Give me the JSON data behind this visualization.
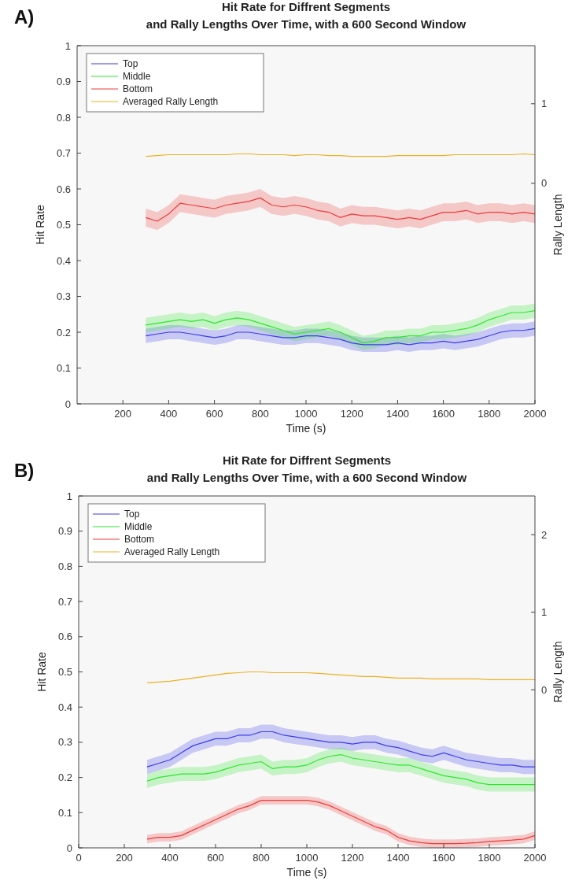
{
  "chart_data": [
    {
      "type": "line",
      "title": "Hit Rate for Diffrent Segments\nand Rally Lengths Over Time, with a 600 Second Window",
      "annotations": [
        "A)"
      ],
      "xlabel": "Time (s)",
      "ylabel": "Hit Rate",
      "y2label": "Rally Length",
      "x": [
        300,
        350,
        400,
        450,
        500,
        550,
        600,
        650,
        700,
        750,
        800,
        850,
        900,
        950,
        1000,
        1050,
        1100,
        1150,
        1200,
        1250,
        1300,
        1350,
        1400,
        1450,
        1500,
        1550,
        1600,
        1650,
        1700,
        1750,
        1800,
        1850,
        1900,
        1950,
        2000
      ],
      "xlim": [
        0,
        2000
      ],
      "xticks": [
        200,
        400,
        600,
        800,
        1000,
        1200,
        1400,
        1600,
        1800,
        2000
      ],
      "ylim": [
        0,
        1
      ],
      "yticks": [
        0,
        0.1,
        0.2,
        0.3,
        0.4,
        0.5,
        0.6,
        0.7,
        0.8,
        0.9,
        1
      ],
      "y2lim": [
        -2.77,
        1.73
      ],
      "y2ticks": [
        0,
        1
      ],
      "legend": "top left",
      "line_style": "solid",
      "series": [
        {
          "name": "Top",
          "color": "#3b3bf0",
          "values": [
            0.19,
            0.195,
            0.2,
            0.2,
            0.195,
            0.19,
            0.185,
            0.19,
            0.2,
            0.2,
            0.195,
            0.19,
            0.185,
            0.185,
            0.19,
            0.19,
            0.185,
            0.18,
            0.17,
            0.165,
            0.165,
            0.165,
            0.17,
            0.165,
            0.17,
            0.17,
            0.175,
            0.17,
            0.175,
            0.18,
            0.19,
            0.2,
            0.205,
            0.205,
            0.21
          ],
          "lower": [
            0.17,
            0.175,
            0.18,
            0.18,
            0.175,
            0.17,
            0.165,
            0.17,
            0.18,
            0.18,
            0.175,
            0.17,
            0.165,
            0.165,
            0.17,
            0.17,
            0.165,
            0.16,
            0.15,
            0.145,
            0.145,
            0.145,
            0.15,
            0.145,
            0.15,
            0.15,
            0.155,
            0.15,
            0.155,
            0.16,
            0.17,
            0.18,
            0.185,
            0.185,
            0.19
          ],
          "upper": [
            0.21,
            0.215,
            0.22,
            0.22,
            0.215,
            0.21,
            0.205,
            0.21,
            0.22,
            0.22,
            0.215,
            0.21,
            0.205,
            0.205,
            0.21,
            0.21,
            0.205,
            0.2,
            0.19,
            0.185,
            0.185,
            0.185,
            0.19,
            0.185,
            0.19,
            0.19,
            0.195,
            0.19,
            0.195,
            0.2,
            0.21,
            0.22,
            0.225,
            0.225,
            0.23
          ]
        },
        {
          "name": "Middle",
          "color": "#2ee62e",
          "values": [
            0.22,
            0.225,
            0.23,
            0.235,
            0.23,
            0.235,
            0.225,
            0.235,
            0.24,
            0.235,
            0.225,
            0.215,
            0.205,
            0.195,
            0.2,
            0.205,
            0.21,
            0.2,
            0.185,
            0.17,
            0.175,
            0.185,
            0.185,
            0.19,
            0.19,
            0.2,
            0.2,
            0.205,
            0.21,
            0.22,
            0.235,
            0.245,
            0.255,
            0.255,
            0.26
          ],
          "lower": [
            0.2,
            0.205,
            0.21,
            0.215,
            0.21,
            0.215,
            0.205,
            0.215,
            0.22,
            0.215,
            0.205,
            0.195,
            0.185,
            0.175,
            0.18,
            0.185,
            0.19,
            0.18,
            0.165,
            0.15,
            0.155,
            0.165,
            0.165,
            0.17,
            0.17,
            0.18,
            0.18,
            0.185,
            0.19,
            0.2,
            0.215,
            0.225,
            0.235,
            0.235,
            0.24
          ],
          "upper": [
            0.24,
            0.245,
            0.25,
            0.255,
            0.25,
            0.255,
            0.245,
            0.255,
            0.26,
            0.255,
            0.245,
            0.235,
            0.225,
            0.215,
            0.22,
            0.225,
            0.23,
            0.22,
            0.205,
            0.19,
            0.195,
            0.205,
            0.205,
            0.21,
            0.21,
            0.22,
            0.22,
            0.225,
            0.23,
            0.24,
            0.255,
            0.265,
            0.275,
            0.275,
            0.28
          ]
        },
        {
          "name": "Bottom",
          "color": "#f03a3a",
          "values": [
            0.52,
            0.51,
            0.53,
            0.56,
            0.555,
            0.55,
            0.545,
            0.555,
            0.56,
            0.565,
            0.575,
            0.555,
            0.55,
            0.555,
            0.55,
            0.54,
            0.535,
            0.52,
            0.53,
            0.525,
            0.525,
            0.52,
            0.515,
            0.52,
            0.515,
            0.525,
            0.535,
            0.535,
            0.54,
            0.53,
            0.535,
            0.535,
            0.53,
            0.535,
            0.53
          ],
          "lower": [
            0.495,
            0.485,
            0.505,
            0.535,
            0.53,
            0.525,
            0.52,
            0.53,
            0.535,
            0.54,
            0.55,
            0.53,
            0.525,
            0.53,
            0.525,
            0.515,
            0.51,
            0.495,
            0.505,
            0.5,
            0.5,
            0.495,
            0.49,
            0.495,
            0.49,
            0.5,
            0.51,
            0.51,
            0.515,
            0.505,
            0.51,
            0.51,
            0.505,
            0.51,
            0.505
          ],
          "upper": [
            0.545,
            0.535,
            0.555,
            0.585,
            0.58,
            0.575,
            0.57,
            0.58,
            0.585,
            0.59,
            0.6,
            0.58,
            0.575,
            0.58,
            0.575,
            0.565,
            0.56,
            0.545,
            0.555,
            0.55,
            0.55,
            0.545,
            0.54,
            0.545,
            0.54,
            0.55,
            0.56,
            0.56,
            0.565,
            0.555,
            0.56,
            0.56,
            0.555,
            0.56,
            0.555
          ]
        },
        {
          "name": "Averaged Rally Length",
          "color": "#edb120",
          "axis": "y2",
          "values": [
            0.34,
            0.35,
            0.36,
            0.36,
            0.36,
            0.36,
            0.36,
            0.36,
            0.37,
            0.37,
            0.36,
            0.36,
            0.36,
            0.35,
            0.36,
            0.36,
            0.35,
            0.35,
            0.34,
            0.34,
            0.34,
            0.34,
            0.35,
            0.35,
            0.35,
            0.35,
            0.35,
            0.36,
            0.36,
            0.36,
            0.36,
            0.36,
            0.36,
            0.37,
            0.36
          ]
        }
      ]
    },
    {
      "type": "line",
      "title": "Hit Rate for Diffrent Segments\nand Rally Lengths Over Time, with a 600 Second Window",
      "annotations": [
        "B)"
      ],
      "xlabel": "Time (s)",
      "ylabel": "Hit Rate",
      "y2label": "Rally Length",
      "x": [
        300,
        350,
        400,
        450,
        500,
        550,
        600,
        650,
        700,
        750,
        800,
        850,
        900,
        950,
        1000,
        1050,
        1100,
        1150,
        1200,
        1250,
        1300,
        1350,
        1400,
        1450,
        1500,
        1550,
        1600,
        1650,
        1700,
        1750,
        1800,
        1850,
        1900,
        1950,
        2000
      ],
      "xlim": [
        0,
        2000
      ],
      "xticks": [
        0,
        200,
        400,
        600,
        800,
        1000,
        1200,
        1400,
        1600,
        1800,
        2000
      ],
      "ylim": [
        0,
        1
      ],
      "yticks": [
        0,
        0.1,
        0.2,
        0.3,
        0.4,
        0.5,
        0.6,
        0.7,
        0.8,
        0.9,
        1
      ],
      "y2lim": [
        -2.04,
        2.5
      ],
      "y2ticks": [
        0,
        1,
        2
      ],
      "legend": "top left",
      "line_style": "solid",
      "series": [
        {
          "name": "Top",
          "color": "#3b3bf0",
          "values": [
            0.23,
            0.24,
            0.25,
            0.27,
            0.29,
            0.3,
            0.31,
            0.31,
            0.32,
            0.32,
            0.33,
            0.33,
            0.32,
            0.315,
            0.31,
            0.305,
            0.3,
            0.3,
            0.295,
            0.3,
            0.3,
            0.29,
            0.285,
            0.275,
            0.265,
            0.26,
            0.27,
            0.26,
            0.25,
            0.245,
            0.24,
            0.235,
            0.235,
            0.23,
            0.23
          ],
          "lower": [
            0.21,
            0.22,
            0.23,
            0.25,
            0.27,
            0.28,
            0.29,
            0.29,
            0.3,
            0.3,
            0.31,
            0.31,
            0.3,
            0.295,
            0.29,
            0.285,
            0.28,
            0.28,
            0.275,
            0.28,
            0.28,
            0.27,
            0.265,
            0.255,
            0.245,
            0.24,
            0.25,
            0.24,
            0.23,
            0.225,
            0.22,
            0.215,
            0.215,
            0.21,
            0.21
          ],
          "upper": [
            0.25,
            0.26,
            0.27,
            0.29,
            0.31,
            0.32,
            0.33,
            0.33,
            0.34,
            0.34,
            0.35,
            0.35,
            0.34,
            0.335,
            0.33,
            0.325,
            0.32,
            0.32,
            0.315,
            0.32,
            0.32,
            0.31,
            0.305,
            0.295,
            0.285,
            0.28,
            0.29,
            0.28,
            0.27,
            0.265,
            0.26,
            0.255,
            0.255,
            0.25,
            0.25
          ]
        },
        {
          "name": "Middle",
          "color": "#2ee62e",
          "values": [
            0.19,
            0.2,
            0.205,
            0.21,
            0.21,
            0.21,
            0.215,
            0.225,
            0.235,
            0.24,
            0.245,
            0.225,
            0.23,
            0.23,
            0.235,
            0.25,
            0.26,
            0.265,
            0.255,
            0.25,
            0.245,
            0.24,
            0.235,
            0.235,
            0.225,
            0.215,
            0.205,
            0.2,
            0.195,
            0.185,
            0.18,
            0.18,
            0.18,
            0.18,
            0.18
          ],
          "lower": [
            0.17,
            0.18,
            0.185,
            0.19,
            0.19,
            0.19,
            0.195,
            0.205,
            0.215,
            0.22,
            0.225,
            0.205,
            0.21,
            0.21,
            0.215,
            0.23,
            0.24,
            0.245,
            0.235,
            0.23,
            0.225,
            0.22,
            0.215,
            0.215,
            0.205,
            0.195,
            0.185,
            0.18,
            0.175,
            0.165,
            0.16,
            0.16,
            0.16,
            0.16,
            0.16
          ],
          "upper": [
            0.21,
            0.22,
            0.225,
            0.23,
            0.23,
            0.23,
            0.235,
            0.245,
            0.255,
            0.26,
            0.265,
            0.245,
            0.25,
            0.25,
            0.255,
            0.27,
            0.28,
            0.285,
            0.275,
            0.27,
            0.265,
            0.26,
            0.255,
            0.255,
            0.245,
            0.235,
            0.225,
            0.22,
            0.215,
            0.205,
            0.2,
            0.2,
            0.2,
            0.2,
            0.2
          ]
        },
        {
          "name": "Bottom",
          "color": "#f03a3a",
          "values": [
            0.025,
            0.03,
            0.03,
            0.035,
            0.05,
            0.065,
            0.08,
            0.095,
            0.11,
            0.12,
            0.135,
            0.135,
            0.135,
            0.135,
            0.135,
            0.13,
            0.12,
            0.105,
            0.09,
            0.075,
            0.06,
            0.05,
            0.03,
            0.02,
            0.015,
            0.012,
            0.012,
            0.012,
            0.013,
            0.015,
            0.018,
            0.02,
            0.022,
            0.025,
            0.035
          ],
          "lower": [
            0.013,
            0.018,
            0.018,
            0.023,
            0.038,
            0.053,
            0.068,
            0.083,
            0.098,
            0.108,
            0.123,
            0.123,
            0.123,
            0.123,
            0.123,
            0.118,
            0.108,
            0.093,
            0.078,
            0.063,
            0.048,
            0.038,
            0.018,
            0.008,
            0.003,
            0,
            0,
            0,
            0.001,
            0.003,
            0.006,
            0.008,
            0.01,
            0.013,
            0.023
          ],
          "upper": [
            0.037,
            0.042,
            0.042,
            0.047,
            0.062,
            0.077,
            0.092,
            0.107,
            0.122,
            0.132,
            0.147,
            0.147,
            0.147,
            0.147,
            0.147,
            0.142,
            0.132,
            0.117,
            0.102,
            0.087,
            0.072,
            0.062,
            0.042,
            0.032,
            0.027,
            0.024,
            0.024,
            0.024,
            0.025,
            0.027,
            0.03,
            0.032,
            0.034,
            0.037,
            0.047
          ]
        },
        {
          "name": "Averaged Rally Length",
          "color": "#edb120",
          "axis": "y2",
          "values": [
            0.09,
            0.1,
            0.11,
            0.13,
            0.15,
            0.17,
            0.19,
            0.21,
            0.22,
            0.23,
            0.23,
            0.22,
            0.22,
            0.22,
            0.22,
            0.21,
            0.2,
            0.19,
            0.18,
            0.17,
            0.17,
            0.16,
            0.15,
            0.15,
            0.15,
            0.14,
            0.14,
            0.14,
            0.14,
            0.14,
            0.13,
            0.13,
            0.13,
            0.13,
            0.13
          ]
        }
      ]
    }
  ]
}
